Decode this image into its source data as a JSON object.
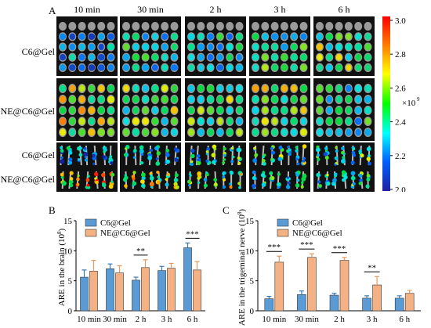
{
  "panel_a": {
    "label": "A",
    "time_labels": [
      "10 min",
      "30 min",
      "2 h",
      "3 h",
      "6 h"
    ],
    "row_labels": [
      "C6@Gel",
      "NE@C6@Gel",
      "C6@Gel",
      "NE@C6@Gel"
    ],
    "colorbar": {
      "ticks": [
        "3.0",
        "2.8",
        "2.6",
        "2.4",
        "2.2",
        "2.0"
      ],
      "exponent_base": "×10",
      "exponent_power": "9",
      "colors": [
        "#ff0000",
        "#ff8000",
        "#ffff00",
        "#00ff00",
        "#00ffff",
        "#0060ff",
        "#2020a0"
      ]
    },
    "brain_intensity": [
      [
        0.25,
        0.4,
        0.4,
        0.45,
        0.55
      ],
      [
        0.65,
        0.55,
        0.55,
        0.6,
        0.4
      ]
    ],
    "nerve_intensity": [
      [
        0.25,
        0.35,
        0.4,
        0.45,
        0.4
      ],
      [
        0.75,
        0.6,
        0.55,
        0.35,
        0.4
      ]
    ]
  },
  "chart_data": [
    {
      "panel": "B",
      "type": "bar",
      "categories": [
        "10 min",
        "30 min",
        "2 h",
        "3 h",
        "6 h"
      ],
      "ylabel": "ARE in the brain (10",
      "ylabel_power": "8",
      "ylim": [
        0,
        15
      ],
      "yticks": [
        "0",
        "5",
        "10",
        "15"
      ],
      "series": [
        {
          "name": "C6@Gel",
          "color": "#5b9bd5",
          "values": [
            5.6,
            7.0,
            5.1,
            6.7,
            10.5
          ],
          "errors": [
            1.2,
            0.8,
            0.5,
            0.7,
            0.8
          ]
        },
        {
          "name": "NE@C6@Gel",
          "color": "#f4b183",
          "values": [
            6.6,
            6.3,
            7.2,
            7.1,
            6.8
          ],
          "errors": [
            1.8,
            1.2,
            1.3,
            0.8,
            1.4
          ]
        }
      ],
      "significance": [
        {
          "category": "2 h",
          "label": "**"
        },
        {
          "category": "6 h",
          "label": "***"
        }
      ]
    },
    {
      "panel": "C",
      "type": "bar",
      "categories": [
        "10 min",
        "30 min",
        "2 h",
        "3 h",
        "6 h"
      ],
      "ylabel": "ARE in the trigeminal nerve (10",
      "ylabel_power": "8",
      "ylim": [
        0,
        15
      ],
      "yticks": [
        "0",
        "5",
        "10",
        "15"
      ],
      "series": [
        {
          "name": "C6@Gel",
          "color": "#5b9bd5",
          "values": [
            2.0,
            2.7,
            2.6,
            2.1,
            2.1
          ],
          "errors": [
            0.4,
            0.6,
            0.3,
            0.4,
            0.4
          ]
        },
        {
          "name": "NE@C6@Gel",
          "color": "#f4b183",
          "values": [
            8.1,
            8.9,
            8.4,
            4.3,
            2.9
          ],
          "errors": [
            1.0,
            0.6,
            0.5,
            1.4,
            0.5
          ]
        }
      ],
      "significance": [
        {
          "category": "10 min",
          "label": "***"
        },
        {
          "category": "30 min",
          "label": "***"
        },
        {
          "category": "2 h",
          "label": "***"
        },
        {
          "category": "3 h",
          "label": "**"
        }
      ]
    }
  ]
}
